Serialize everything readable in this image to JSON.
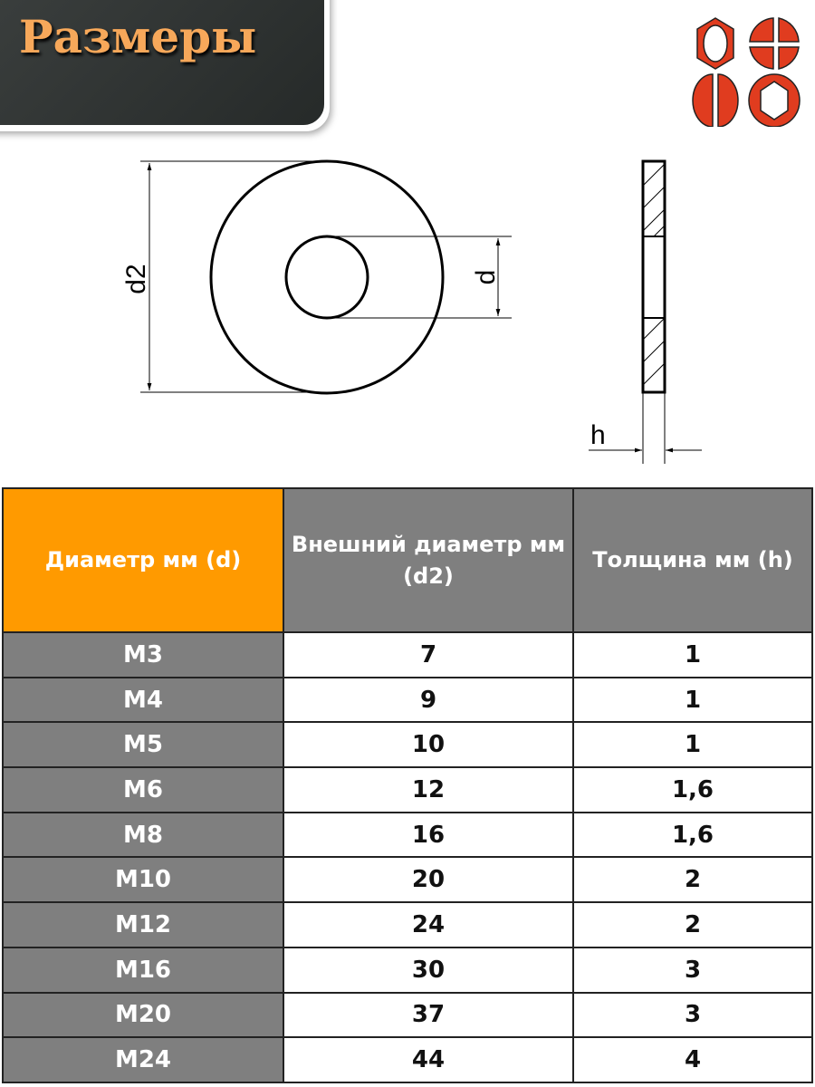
{
  "banner": {
    "title": "Размеры"
  },
  "logo": {
    "name": "fasteners-logo-icon",
    "color": "#e03c1f"
  },
  "drawing": {
    "label_d2": "d2",
    "label_d": "d",
    "label_h": "h"
  },
  "table": {
    "headers": [
      "Диаметр мм (d)",
      "Внешний диаметр мм (d2)",
      "Толщина мм (h)"
    ],
    "header_colors": {
      "first": "#ff9a00",
      "other": "#7f7f7f"
    },
    "rows": [
      [
        "M3",
        "7",
        "1"
      ],
      [
        "M4",
        "9",
        "1"
      ],
      [
        "M5",
        "10",
        "1"
      ],
      [
        "M6",
        "12",
        "1,6"
      ],
      [
        "M8",
        "16",
        "1,6"
      ],
      [
        "M10",
        "20",
        "2"
      ],
      [
        "M12",
        "24",
        "2"
      ],
      [
        "M16",
        "30",
        "3"
      ],
      [
        "M20",
        "37",
        "3"
      ],
      [
        "M24",
        "44",
        "4"
      ]
    ]
  }
}
